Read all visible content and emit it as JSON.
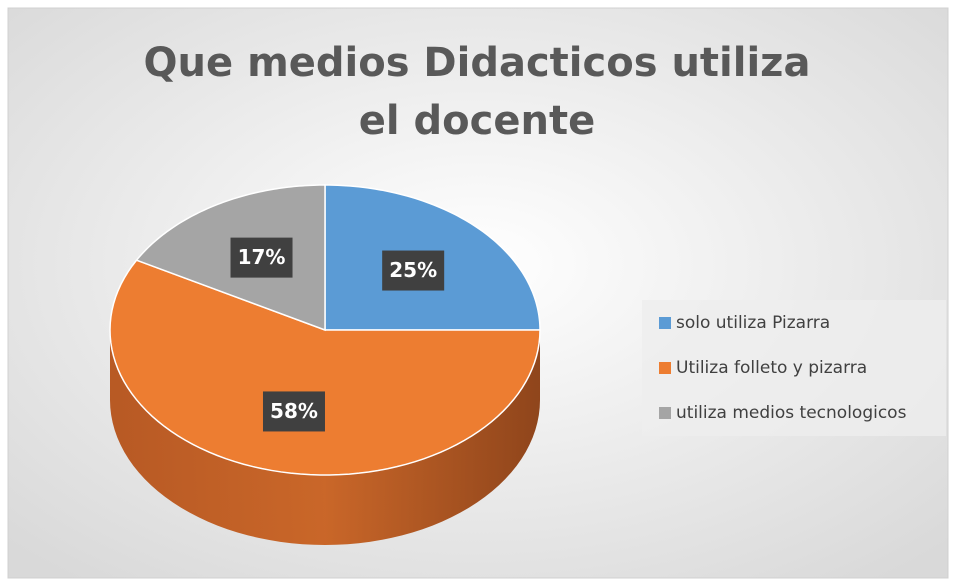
{
  "chart_data": {
    "type": "pie",
    "title": "Que medios Didacticos utiliza el docente",
    "categories": [
      "solo utiliza Pizarra",
      "Utiliza folleto y pizarra",
      "utiliza medios tecnologicos"
    ],
    "values": [
      25,
      58,
      17
    ],
    "value_labels": [
      "25%",
      "58%",
      "17%"
    ],
    "colors": [
      "#5b9bd5",
      "#ed7d31",
      "#a5a5a5"
    ],
    "legend": "right"
  }
}
